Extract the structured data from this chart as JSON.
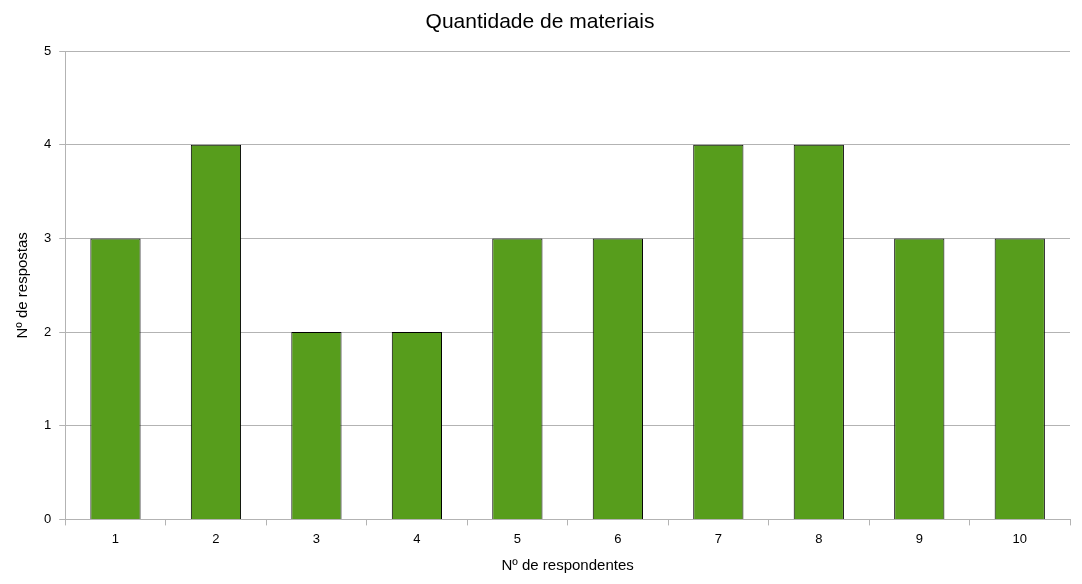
{
  "chart_data": {
    "type": "bar",
    "title": "Quantidade de materiais",
    "xlabel": "Nº de respondentes",
    "ylabel": "Nº de respostas",
    "categories": [
      "1",
      "2",
      "3",
      "4",
      "5",
      "6",
      "7",
      "8",
      "9",
      "10"
    ],
    "values": [
      3,
      4,
      2,
      2,
      3,
      3,
      4,
      4,
      3,
      3
    ],
    "color": "#579d1c",
    "ylim": [
      0,
      5
    ],
    "yticks": [
      0,
      1,
      2,
      3,
      4,
      5
    ],
    "grid": "y",
    "legend": false
  }
}
